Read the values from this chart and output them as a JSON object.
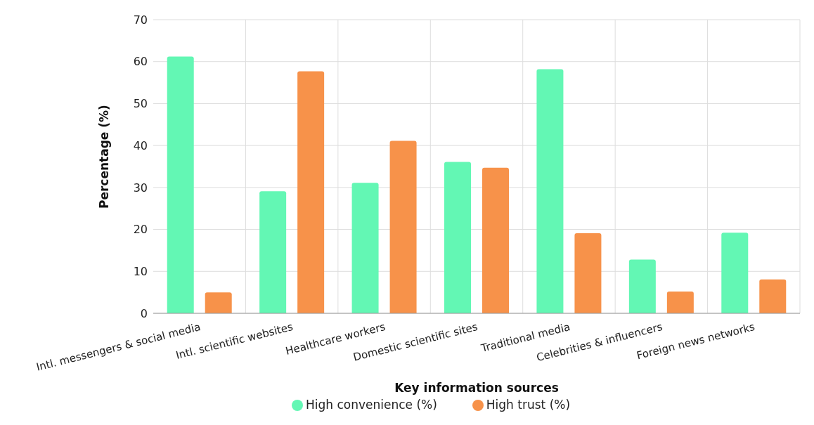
{
  "chart_data": {
    "type": "bar",
    "xlabel": "Key information sources",
    "ylabel": "Percentage (%)",
    "categories": [
      "Intl. messengers & social media",
      "Intl. scientific websites",
      "Healthcare workers",
      "Domestic scientific sites",
      "Traditional media",
      "Celebrities & influencers",
      "Foreign news networks"
    ],
    "series": [
      {
        "name": "High convenience (%)",
        "color": "#63f7b4",
        "values": [
          61.2,
          29.1,
          31.1,
          36.1,
          58.2,
          12.8,
          19.2
        ]
      },
      {
        "name": "High trust (%)",
        "color": "#f7924a",
        "values": [
          5.0,
          57.7,
          41.1,
          34.7,
          19.1,
          5.2,
          8.1
        ]
      }
    ],
    "ylim": [
      0,
      70
    ],
    "yticks": [
      0,
      10,
      20,
      30,
      40,
      50,
      60,
      70
    ],
    "grid": true,
    "legend": "bottom"
  }
}
